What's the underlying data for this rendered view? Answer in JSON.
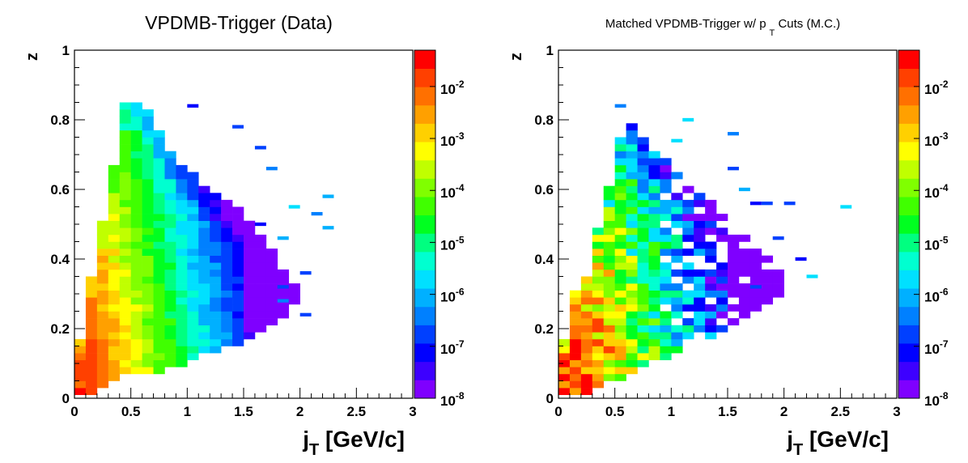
{
  "chart_data": [
    {
      "type": "heatmap",
      "title": "VPDMB-Trigger (Data)",
      "subscript": "",
      "title_suffix": "",
      "xlabel_main": "j",
      "xlabel_sub": "T",
      "xlabel_rest": " [GeV/c]",
      "ylabel": "z",
      "xlim": [
        0,
        3
      ],
      "ylim": [
        0,
        1
      ],
      "log_z": true,
      "zlim": [
        1e-08,
        0.05
      ],
      "x_ticks": [
        "0",
        "0.5",
        "1",
        "1.5",
        "2",
        "2.5",
        "3"
      ],
      "y_ticks": [
        "0",
        "0.2",
        "0.4",
        "0.6",
        "0.8",
        "1"
      ],
      "z_ticks": [
        {
          "base": "10",
          "exp": "-2"
        },
        {
          "base": "10",
          "exp": "-3"
        },
        {
          "base": "10",
          "exp": "-4"
        },
        {
          "base": "10",
          "exp": "-5"
        },
        {
          "base": "10",
          "exp": "-6"
        },
        {
          "base": "10",
          "exp": "-7"
        },
        {
          "base": "10",
          "exp": "-8"
        }
      ],
      "bins": {
        "x_width": 0.1,
        "y_width": 0.02
      },
      "profile": {
        "zmin_by_x": [
          0.02,
          0.02,
          0.04,
          0.06,
          0.08,
          0.08,
          0.08,
          0.08,
          0.1,
          0.1,
          0.12,
          0.14,
          0.14,
          0.16,
          0.16,
          0.18,
          0.2,
          0.22,
          0.24,
          0.28
        ],
        "zmax_by_x": [
          0.16,
          0.34,
          0.5,
          0.66,
          0.84,
          0.84,
          0.82,
          0.76,
          0.7,
          0.66,
          0.64,
          0.6,
          0.58,
          0.56,
          0.54,
          0.5,
          0.46,
          0.42,
          0.36,
          0.32
        ],
        "peak_log10": -1.8,
        "x_decay_per_unit": 3.6,
        "z_decay_per_unit": 2.2
      },
      "sparse_points": [
        [
          1.05,
          0.84
        ],
        [
          1.45,
          0.78
        ],
        [
          1.65,
          0.72
        ],
        [
          1.75,
          0.66
        ],
        [
          2.25,
          0.58
        ],
        [
          1.95,
          0.55
        ],
        [
          2.15,
          0.53
        ],
        [
          2.25,
          0.49
        ],
        [
          1.65,
          0.5
        ],
        [
          1.85,
          0.46
        ],
        [
          2.05,
          0.36
        ],
        [
          1.85,
          0.32
        ],
        [
          2.05,
          0.24
        ],
        [
          1.85,
          0.28
        ]
      ]
    },
    {
      "type": "heatmap",
      "title": "Matched VPDMB-Trigger w/ p",
      "subscript": "T",
      "title_suffix": " Cuts (M.C.)",
      "xlabel_main": "j",
      "xlabel_sub": "T",
      "xlabel_rest": " [GeV/c]",
      "ylabel": "z",
      "xlim": [
        0,
        3
      ],
      "ylim": [
        0,
        1
      ],
      "log_z": true,
      "zlim": [
        1e-08,
        0.05
      ],
      "x_ticks": [
        "0",
        "0.5",
        "1",
        "1.5",
        "2",
        "2.5",
        "3"
      ],
      "y_ticks": [
        "0",
        "0.2",
        "0.4",
        "0.6",
        "0.8",
        "1"
      ],
      "z_ticks": [
        {
          "base": "10",
          "exp": "-2"
        },
        {
          "base": "10",
          "exp": "-3"
        },
        {
          "base": "10",
          "exp": "-4"
        },
        {
          "base": "10",
          "exp": "-5"
        },
        {
          "base": "10",
          "exp": "-6"
        },
        {
          "base": "10",
          "exp": "-7"
        },
        {
          "base": "10",
          "exp": "-8"
        }
      ],
      "bins": {
        "x_width": 0.1,
        "y_width": 0.02
      },
      "profile": {
        "zmin_by_x": [
          0.02,
          0.02,
          0.02,
          0.04,
          0.06,
          0.06,
          0.08,
          0.1,
          0.12,
          0.12,
          0.14,
          0.16,
          0.18,
          0.18,
          0.2,
          0.22,
          0.24,
          0.26,
          0.28,
          0.3
        ],
        "zmax_by_x": [
          0.16,
          0.3,
          0.34,
          0.48,
          0.6,
          0.74,
          0.78,
          0.74,
          0.7,
          0.68,
          0.64,
          0.6,
          0.58,
          0.56,
          0.52,
          0.5,
          0.46,
          0.44,
          0.4,
          0.36
        ],
        "peak_log10": -1.8,
        "x_decay_per_unit": 3.8,
        "z_decay_per_unit": 2.4
      },
      "sparse_points": [
        [
          0.55,
          0.84
        ],
        [
          1.15,
          0.8
        ],
        [
          1.55,
          0.76
        ],
        [
          1.05,
          0.74
        ],
        [
          2.05,
          0.56
        ],
        [
          1.75,
          0.56
        ],
        [
          1.85,
          0.56
        ],
        [
          2.55,
          0.55
        ],
        [
          1.55,
          0.66
        ],
        [
          1.65,
          0.6
        ],
        [
          2.15,
          0.4
        ],
        [
          2.25,
          0.35
        ],
        [
          1.75,
          0.32
        ],
        [
          1.95,
          0.46
        ]
      ]
    }
  ]
}
